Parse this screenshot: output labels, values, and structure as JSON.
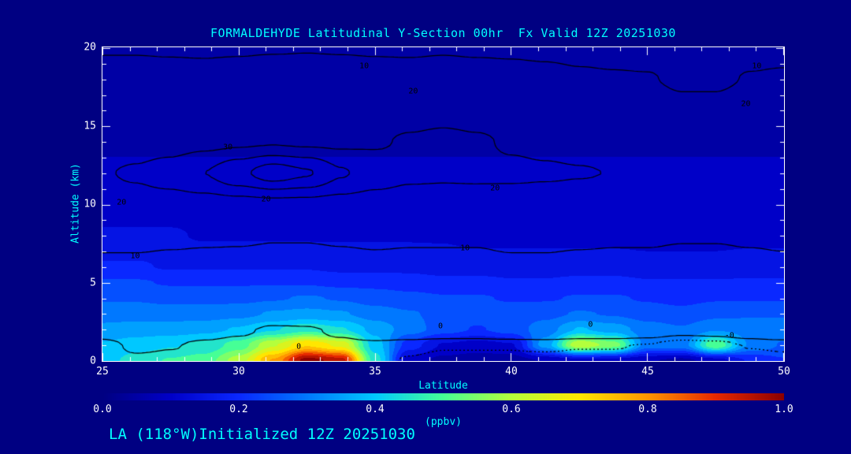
{
  "page": {
    "bg": "#000082",
    "fg": "#ffffff",
    "accent": "#00ffff"
  },
  "chart_data": {
    "type": "heatmap",
    "title": "FORMALDEHYDE Latitudinal Y-Section 00hr  Fx Valid 12Z 20251030",
    "xlabel": "Latitude",
    "ylabel": "Altitude (km)",
    "footer": "LA (118°W)Initialized 12Z 20251030",
    "xlim": [
      25,
      50
    ],
    "ylim": [
      0,
      20
    ],
    "xticks": [
      25,
      30,
      35,
      40,
      45,
      50
    ],
    "yticks": [
      0,
      5,
      10,
      15,
      20
    ],
    "colorbar": {
      "label": "(ppbv)",
      "ticks": [
        "0.0",
        "0.2",
        "0.4",
        "0.6",
        "0.8",
        "1.0"
      ],
      "min": 0,
      "max": 1
    },
    "colormap": [
      [
        0.0,
        [
          0,
          0,
          130
        ]
      ],
      [
        0.1,
        [
          0,
          0,
          200
        ]
      ],
      [
        0.2,
        [
          10,
          40,
          255
        ]
      ],
      [
        0.3,
        [
          0,
          120,
          255
        ]
      ],
      [
        0.4,
        [
          0,
          200,
          255
        ]
      ],
      [
        0.5,
        [
          70,
          255,
          150
        ]
      ],
      [
        0.6,
        [
          180,
          255,
          60
        ]
      ],
      [
        0.7,
        [
          255,
          230,
          0
        ]
      ],
      [
        0.8,
        [
          255,
          150,
          0
        ]
      ],
      [
        0.9,
        [
          230,
          40,
          0
        ]
      ],
      [
        1.0,
        [
          140,
          0,
          0
        ]
      ]
    ],
    "fill_field": {
      "units": "ppbv",
      "lats": [
        25,
        26.25,
        27.5,
        28.75,
        30,
        31.25,
        32.5,
        33.75,
        35,
        36.25,
        37.5,
        38.75,
        40,
        41.25,
        42.5,
        43.75,
        45,
        46.25,
        47.5,
        48.75,
        50
      ],
      "alts": [
        0,
        1,
        2,
        3,
        4,
        5,
        6,
        8,
        10,
        12,
        14,
        16,
        18,
        20
      ],
      "values": [
        [
          0.4,
          0.45,
          0.48,
          0.5,
          0.6,
          0.78,
          1.0,
          0.95,
          0.45,
          0.1,
          0.06,
          0.05,
          0.05,
          0.08,
          0.1,
          0.1,
          0.08,
          0.06,
          0.1,
          0.18,
          0.22
        ],
        [
          0.38,
          0.4,
          0.42,
          0.44,
          0.5,
          0.62,
          0.72,
          0.66,
          0.4,
          0.2,
          0.12,
          0.1,
          0.12,
          0.35,
          0.62,
          0.55,
          0.3,
          0.3,
          0.52,
          0.32,
          0.27
        ],
        [
          0.34,
          0.35,
          0.35,
          0.36,
          0.38,
          0.42,
          0.46,
          0.43,
          0.36,
          0.3,
          0.25,
          0.22,
          0.25,
          0.3,
          0.38,
          0.35,
          0.3,
          0.28,
          0.32,
          0.3,
          0.3
        ],
        [
          0.3,
          0.3,
          0.3,
          0.3,
          0.31,
          0.33,
          0.34,
          0.33,
          0.3,
          0.28,
          0.26,
          0.25,
          0.25,
          0.26,
          0.28,
          0.27,
          0.25,
          0.24,
          0.26,
          0.27,
          0.27
        ],
        [
          0.27,
          0.27,
          0.26,
          0.26,
          0.26,
          0.27,
          0.28,
          0.27,
          0.25,
          0.24,
          0.23,
          0.23,
          0.22,
          0.22,
          0.23,
          0.23,
          0.22,
          0.21,
          0.22,
          0.22,
          0.22
        ],
        [
          0.23,
          0.23,
          0.22,
          0.22,
          0.22,
          0.22,
          0.22,
          0.21,
          0.21,
          0.2,
          0.19,
          0.19,
          0.18,
          0.18,
          0.19,
          0.19,
          0.18,
          0.18,
          0.18,
          0.18,
          0.18
        ],
        [
          0.18,
          0.18,
          0.17,
          0.17,
          0.17,
          0.17,
          0.17,
          0.16,
          0.16,
          0.16,
          0.15,
          0.15,
          0.15,
          0.15,
          0.15,
          0.15,
          0.14,
          0.14,
          0.14,
          0.15,
          0.15
        ],
        [
          0.13,
          0.13,
          0.13,
          0.12,
          0.12,
          0.12,
          0.12,
          0.12,
          0.12,
          0.12,
          0.12,
          0.11,
          0.11,
          0.11,
          0.11,
          0.11,
          0.11,
          0.11,
          0.11,
          0.11,
          0.11
        ],
        [
          0.1,
          0.1,
          0.1,
          0.1,
          0.1,
          0.1,
          0.1,
          0.1,
          0.1,
          0.1,
          0.1,
          0.09,
          0.09,
          0.09,
          0.09,
          0.09,
          0.09,
          0.09,
          0.09,
          0.09,
          0.09
        ],
        [
          0.08,
          0.08,
          0.08,
          0.08,
          0.08,
          0.08,
          0.08,
          0.08,
          0.08,
          0.08,
          0.08,
          0.08,
          0.08,
          0.08,
          0.08,
          0.08,
          0.08,
          0.08,
          0.08,
          0.08,
          0.08
        ],
        [
          0.07,
          0.07,
          0.07,
          0.07,
          0.07,
          0.07,
          0.07,
          0.07,
          0.07,
          0.07,
          0.07,
          0.07,
          0.07,
          0.07,
          0.07,
          0.07,
          0.07,
          0.07,
          0.07,
          0.07,
          0.07
        ],
        [
          0.06,
          0.06,
          0.06,
          0.06,
          0.06,
          0.06,
          0.06,
          0.06,
          0.06,
          0.06,
          0.06,
          0.06,
          0.06,
          0.06,
          0.06,
          0.06,
          0.06,
          0.06,
          0.06,
          0.06,
          0.06
        ],
        [
          0.05,
          0.05,
          0.05,
          0.05,
          0.05,
          0.05,
          0.05,
          0.05,
          0.05,
          0.05,
          0.05,
          0.05,
          0.05,
          0.05,
          0.05,
          0.05,
          0.05,
          0.05,
          0.05,
          0.05,
          0.05
        ],
        [
          0.04,
          0.04,
          0.04,
          0.04,
          0.04,
          0.04,
          0.04,
          0.04,
          0.04,
          0.04,
          0.04,
          0.04,
          0.04,
          0.04,
          0.04,
          0.04,
          0.04,
          0.04,
          0.04,
          0.04,
          0.04
        ]
      ]
    },
    "overlay_field": {
      "levels": [
        0,
        10,
        20,
        30,
        40
      ],
      "dotted_levels": [
        -0.55
      ],
      "lats": [
        25,
        26.25,
        27.5,
        28.75,
        30,
        31.25,
        32.5,
        33.75,
        35,
        36.25,
        37.5,
        38.75,
        40,
        41.25,
        42.5,
        43.75,
        45,
        46.25,
        47.5,
        48.75,
        50
      ],
      "alts": [
        0,
        1,
        2,
        3,
        4,
        5,
        6,
        8,
        10,
        12,
        14,
        16,
        18,
        20
      ],
      "values": [
        [
          -0.4,
          -0.3,
          -0.4,
          -0.4,
          -0.4,
          -0.4,
          -0.4,
          -0.4,
          -0.4,
          -0.6,
          -0.7,
          -0.7,
          -0.7,
          -0.8,
          -0.8,
          -0.8,
          -0.9,
          -1.2,
          -1.2,
          -0.9,
          -0.8
        ],
        [
          -0.5,
          0.3,
          0.1,
          -0.3,
          -0.5,
          -0.5,
          -0.4,
          -0.3,
          -0.3,
          -0.4,
          -0.5,
          -0.5,
          -0.5,
          -0.4,
          -0.5,
          -0.5,
          -0.6,
          -0.9,
          -0.8,
          -0.5,
          -0.4
        ],
        [
          1,
          1.2,
          1,
          0.8,
          0.3,
          -0.3,
          -0.2,
          0.3,
          1,
          0.9,
          0.8,
          0.8,
          1,
          0.9,
          0.8,
          0.8,
          0.7,
          0.4,
          0.5,
          0.8,
          1
        ],
        [
          3,
          3,
          3,
          2.5,
          2,
          1.5,
          1.5,
          2,
          2.5,
          2.5,
          2.5,
          2.5,
          3,
          3,
          2.5,
          2.5,
          2.5,
          2,
          2,
          2.5,
          3
        ],
        [
          5,
          5,
          5,
          4.5,
          4,
          3.5,
          3.5,
          4,
          4.5,
          4.5,
          4.5,
          4.5,
          5,
          5,
          4.5,
          4.5,
          4.5,
          4,
          4,
          4.5,
          5
        ],
        [
          6.5,
          6.5,
          6,
          6,
          5.5,
          5,
          5,
          5.5,
          6,
          6,
          6,
          6,
          6.5,
          6.5,
          6,
          6,
          6,
          5.5,
          5.5,
          6,
          6.5
        ],
        [
          8.5,
          8.5,
          8,
          8,
          7.5,
          7,
          7,
          7.5,
          8,
          8,
          8,
          8,
          8.5,
          8.5,
          8,
          8,
          8,
          7.5,
          7.5,
          8,
          8.5
        ],
        [
          12,
          12,
          11.5,
          11,
          11,
          10.5,
          10.5,
          11,
          11.5,
          11,
          11,
          11,
          12,
          12,
          11.5,
          11,
          11,
          10.5,
          10.5,
          11,
          11.5
        ],
        [
          17,
          17,
          16.5,
          16,
          16.5,
          17,
          17,
          16.5,
          16,
          15.5,
          15.5,
          15.5,
          16,
          16,
          15.5,
          15,
          15,
          14.5,
          14.5,
          15,
          15.5
        ],
        [
          19.5,
          21,
          24,
          30,
          38,
          45,
          41,
          31,
          25,
          22,
          21.5,
          21.8,
          21.5,
          21,
          20.5,
          19.8,
          19.6,
          19.2,
          19,
          19.5,
          19.8
        ],
        [
          16,
          16,
          16,
          17,
          18,
          19,
          18,
          18,
          19,
          21,
          22,
          21,
          19,
          18,
          17,
          16,
          16,
          15,
          15,
          16,
          16
        ],
        [
          13,
          13,
          13,
          14,
          15,
          15,
          15,
          15,
          15,
          16,
          17,
          16,
          15,
          14,
          13,
          12,
          12,
          11,
          11,
          12,
          12
        ],
        [
          11,
          11,
          11,
          11,
          11.5,
          12,
          12,
          11.8,
          11.5,
          11.5,
          12,
          11.5,
          11.3,
          11,
          10.5,
          10.3,
          10.2,
          9.4,
          9.4,
          10.2,
          10.4
        ],
        [
          9.8,
          9.8,
          9.7,
          9.6,
          9.6,
          9.7,
          9.8,
          9.7,
          9.6,
          9.5,
          9.6,
          9.5,
          9.4,
          9.2,
          9,
          8.8,
          8.6,
          8.2,
          8.2,
          8.8,
          9
        ]
      ],
      "labels": [
        {
          "text": "10",
          "lat": 34.6,
          "alt": 18.8
        },
        {
          "text": "10",
          "lat": 49.0,
          "alt": 18.8
        },
        {
          "text": "20",
          "lat": 36.4,
          "alt": 17.2
        },
        {
          "text": "20",
          "lat": 48.6,
          "alt": 16.4
        },
        {
          "text": "30",
          "lat": 29.6,
          "alt": 13.6
        },
        {
          "text": "20",
          "lat": 25.7,
          "alt": 10.1
        },
        {
          "text": "20",
          "lat": 31.0,
          "alt": 10.3
        },
        {
          "text": "20",
          "lat": 39.4,
          "alt": 11.0
        },
        {
          "text": "10",
          "lat": 26.2,
          "alt": 6.7
        },
        {
          "text": "10",
          "lat": 38.3,
          "alt": 7.2
        },
        {
          "text": "0",
          "lat": 32.2,
          "alt": 0.9
        },
        {
          "text": "0",
          "lat": 37.4,
          "alt": 2.2
        },
        {
          "text": "0",
          "lat": 42.9,
          "alt": 2.3
        },
        {
          "text": "-0",
          "lat": 48.0,
          "alt": 1.6
        }
      ]
    }
  }
}
